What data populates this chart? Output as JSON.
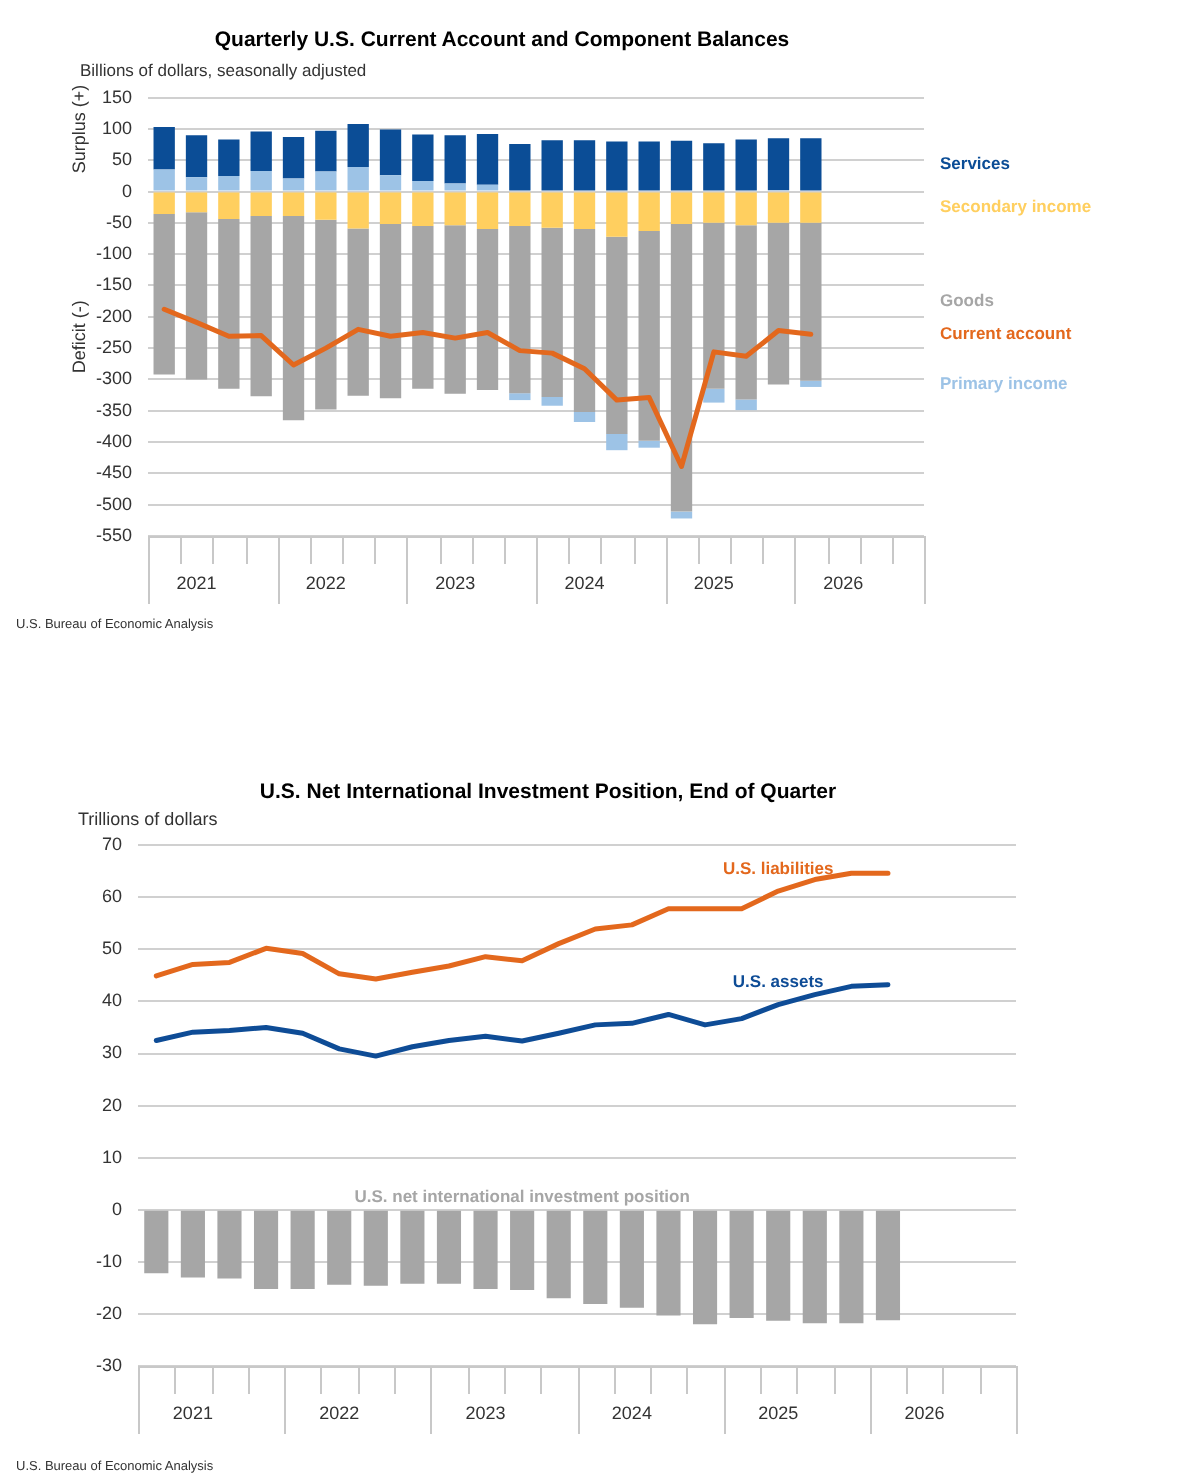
{
  "chart_data": [
    {
      "type": "bar",
      "title": "Quarterly U.S. Current Account and Component Balances",
      "subtitle": "Billions of dollars, seasonally adjusted",
      "ylabel": "Surplus (+)",
      "annotations": [
        "Deficit (-)",
        "U.S. Bureau of Economic Analysis"
      ],
      "categories": [
        null,
        "2021",
        null,
        null,
        null,
        "2022",
        null,
        null,
        null,
        "2023",
        null,
        null,
        null,
        "2024",
        null,
        null,
        null,
        "2025",
        null,
        null,
        null,
        "2026",
        null,
        null
      ],
      "stacked": true,
      "legend": "right",
      "grid": "y",
      "marker": "none",
      "ylim": [
        -550,
        150
      ],
      "yticks": [
        150,
        100,
        50,
        0,
        -50,
        -100,
        -150,
        -200,
        -250,
        -300,
        -350,
        -400,
        -450,
        -500,
        -550
      ],
      "series": [
        {
          "name": "Secondary income",
          "color": "#ffcf5f",
          "values": [
            -36,
            -33,
            -44,
            -39,
            -39,
            -45,
            -59,
            -52,
            -55,
            -54,
            -60,
            -55,
            -58,
            -60,
            -72,
            -63,
            -52,
            -50,
            -54,
            -50,
            -50,
            null,
            null,
            null
          ]
        },
        {
          "name": "Goods",
          "color": "#a6a6a6",
          "values": [
            -256,
            -267,
            -271,
            -288,
            -326,
            -303,
            -267,
            -278,
            -260,
            -269,
            -257,
            -267,
            -270,
            -292,
            -315,
            -335,
            -459,
            -265,
            -278,
            -258,
            -252,
            null,
            null,
            null
          ]
        },
        {
          "name": "Primary income",
          "color": "#9dc3e6",
          "values": [
            35,
            23,
            25,
            33,
            21,
            32,
            39,
            26,
            17,
            13,
            11,
            -11,
            -14,
            -16,
            -26,
            -11,
            -11,
            -22,
            -17,
            2,
            -10,
            null,
            null,
            null
          ]
        },
        {
          "name": "Services",
          "color": "#0b4d96",
          "values": [
            68,
            67,
            58,
            63,
            66,
            65,
            69,
            73,
            74,
            77,
            81,
            76,
            82,
            82,
            80,
            80,
            81,
            77,
            83,
            83,
            85,
            null,
            null,
            null
          ]
        },
        {
          "name": "Current account",
          "type": "line",
          "color": "#e3681d",
          "values": [
            -188,
            -209,
            -231,
            -230,
            -277,
            -250,
            -220,
            -231,
            -225,
            -234,
            -225,
            -254,
            -258,
            -283,
            -333,
            -329,
            -439,
            -256,
            -263,
            -222,
            -228,
            null,
            null,
            null
          ]
        }
      ]
    },
    {
      "type": "line",
      "title": "U.S. Net International Investment Position, End of Quarter",
      "ylabel": "Trillions of dollars",
      "annotations": [
        "U.S. Bureau of Economic Analysis"
      ],
      "categories": [
        null,
        "2021",
        null,
        null,
        null,
        "2022",
        null,
        null,
        null,
        "2023",
        null,
        null,
        null,
        "2024",
        null,
        null,
        null,
        "2025",
        null,
        null,
        null,
        "2026",
        null,
        null
      ],
      "grid": "y",
      "marker": "none",
      "ylim": [
        -30,
        70
      ],
      "yticks": [
        70,
        60,
        50,
        40,
        30,
        20,
        10,
        0,
        -10,
        -20,
        -30
      ],
      "series": [
        {
          "name": "U.S. liabilities",
          "color": "#e3681d",
          "values": [
            44.9,
            47.1,
            47.5,
            50.2,
            49.2,
            45.3,
            44.3,
            45.6,
            46.8,
            48.6,
            47.8,
            51.1,
            53.9,
            54.7,
            57.8,
            57.8,
            57.8,
            61.2,
            63.4,
            64.6,
            64.6,
            null,
            null,
            null
          ]
        },
        {
          "name": "U.S. assets",
          "color": "#0e4c96",
          "values": [
            32.5,
            34.1,
            34.4,
            35.0,
            33.9,
            30.9,
            29.5,
            31.3,
            32.5,
            33.3,
            32.4,
            33.9,
            35.5,
            35.8,
            37.5,
            35.5,
            36.7,
            39.4,
            41.3,
            42.9,
            43.2,
            null,
            null,
            null
          ]
        },
        {
          "name": "U.S. net international investment position",
          "type": "bar",
          "color": "#a6a6a6",
          "values": [
            -12.2,
            -13.0,
            -13.2,
            -15.2,
            -15.2,
            -14.4,
            -14.6,
            -14.2,
            -14.2,
            -15.2,
            -15.4,
            -17.0,
            -18.1,
            -18.8,
            -20.3,
            -22.0,
            -20.8,
            -21.3,
            -21.8,
            -21.8,
            -21.2,
            null,
            null,
            null
          ]
        }
      ]
    }
  ]
}
